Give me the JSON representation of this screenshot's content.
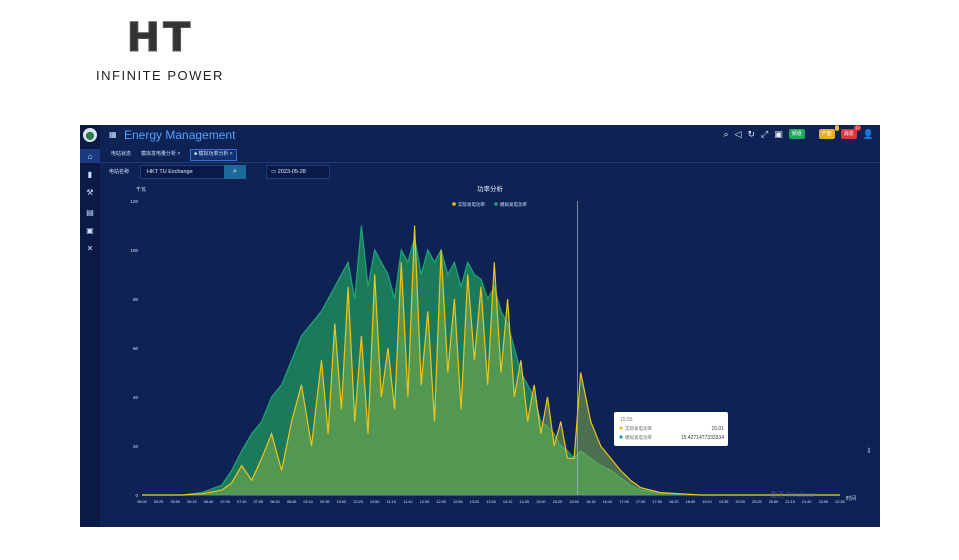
{
  "logo": {
    "mark": "HT",
    "tagline": "INFINITE POWER"
  },
  "app": {
    "title": "Energy Management"
  },
  "sidebar": {
    "items": [
      "home-icon",
      "folder-icon",
      "tool-icon",
      "table-icon",
      "chart-icon",
      "settings-icon"
    ]
  },
  "toolbar": {
    "icons": [
      "search-icon",
      "volume-icon",
      "refresh-icon",
      "fullscreen-icon",
      "screen-icon"
    ],
    "btn_green": "频道",
    "btn_yellow": "产能",
    "btn_red": "消息",
    "badge_yellow": "0",
    "badge_red": "17"
  },
  "tabs": [
    {
      "label": "电站状态"
    },
    {
      "label": "模拟发电量分析 ×"
    },
    {
      "label": "■ 模拟功率分析 ×"
    }
  ],
  "filters": {
    "station_label": "电站名称",
    "station_value": "HKT TU Exchange",
    "date_value": "2023-05-28"
  },
  "tooltip": {
    "time": "15:55",
    "rows": [
      {
        "name": "实际发电功率",
        "value": "15.01",
        "color": "#f0c419"
      },
      {
        "name": "模拟发电功率",
        "value": "15.4271477333334",
        "color": "#1ea87a"
      }
    ]
  },
  "watermark": "激活 Windows",
  "chart_data": {
    "type": "area",
    "title": "功率分析",
    "xlabel": "时间",
    "ylabel": "千瓦",
    "ylim": [
      0,
      120
    ],
    "yticks": [
      0,
      20,
      40,
      60,
      80,
      100,
      120
    ],
    "xticks": [
      "05:00",
      "05:25",
      "05:50",
      "06:15",
      "06:40",
      "07:05",
      "07:30",
      "07:55",
      "08:20",
      "08:45",
      "09:10",
      "09:35",
      "10:00",
      "10:25",
      "10:50",
      "11:15",
      "11:40",
      "12:05",
      "12:30",
      "12:55",
      "13:20",
      "13:45",
      "14:10",
      "14:35",
      "15:00",
      "15:25",
      "15:50",
      "16:15",
      "16:40",
      "17:05",
      "17:30",
      "17:55",
      "18:20",
      "18:45",
      "19:10",
      "19:35",
      "20:00",
      "20:25",
      "20:50",
      "21:15",
      "21:40",
      "22:05",
      "22:30"
    ],
    "x": [
      "05:00",
      "05:30",
      "06:00",
      "06:30",
      "07:00",
      "07:15",
      "07:30",
      "07:45",
      "08:00",
      "08:15",
      "08:30",
      "08:45",
      "09:00",
      "09:15",
      "09:30",
      "09:40",
      "09:50",
      "10:00",
      "10:10",
      "10:20",
      "10:30",
      "10:40",
      "10:50",
      "11:00",
      "11:10",
      "11:20",
      "11:30",
      "11:40",
      "11:50",
      "12:00",
      "12:10",
      "12:20",
      "12:30",
      "12:40",
      "12:50",
      "13:00",
      "13:10",
      "13:20",
      "13:30",
      "13:40",
      "13:50",
      "14:00",
      "14:10",
      "14:20",
      "14:30",
      "14:40",
      "14:50",
      "15:00",
      "15:10",
      "15:20",
      "15:30",
      "15:40",
      "15:50",
      "16:00",
      "16:15",
      "16:30",
      "16:45",
      "17:00",
      "17:15",
      "17:30",
      "18:00",
      "18:30",
      "19:00",
      "20:00",
      "21:00",
      "22:30"
    ],
    "series": [
      {
        "name": "实际发电功率",
        "color": "#f0c419",
        "values": [
          0,
          0,
          0,
          0.5,
          2,
          5,
          12,
          6,
          15,
          25,
          10,
          30,
          45,
          20,
          55,
          25,
          70,
          35,
          85,
          30,
          65,
          25,
          90,
          40,
          60,
          35,
          95,
          40,
          110,
          45,
          75,
          30,
          100,
          50,
          80,
          35,
          90,
          55,
          85,
          45,
          95,
          50,
          80,
          40,
          55,
          30,
          45,
          25,
          40,
          20,
          30,
          15,
          15,
          50,
          30,
          20,
          15,
          10,
          6,
          3,
          1,
          0.5,
          0,
          0,
          0,
          0
        ]
      },
      {
        "name": "模拟发电功率",
        "color": "#1ea87a",
        "values": [
          0,
          0,
          0,
          1,
          4,
          10,
          18,
          25,
          30,
          40,
          45,
          55,
          65,
          70,
          75,
          80,
          85,
          90,
          95,
          80,
          110,
          85,
          100,
          95,
          90,
          80,
          100,
          95,
          105,
          90,
          100,
          95,
          100,
          90,
          95,
          85,
          95,
          90,
          88,
          80,
          85,
          75,
          70,
          60,
          50,
          45,
          40,
          30,
          28,
          25,
          20,
          18,
          15,
          18,
          15,
          12,
          10,
          7,
          4,
          2,
          1,
          0.5,
          0,
          0,
          0,
          0
        ]
      }
    ],
    "legend": {
      "position": "top-center",
      "items": [
        "实际发电功率",
        "模拟发电功率"
      ]
    },
    "grid": false,
    "tooltip_x": "15:55"
  }
}
